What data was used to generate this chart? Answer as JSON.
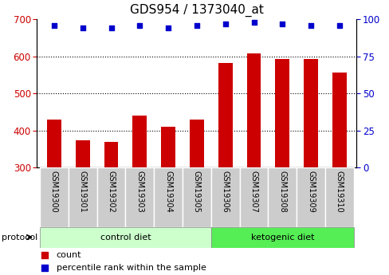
{
  "title": "GDS954 / 1373040_at",
  "samples": [
    "GSM19300",
    "GSM19301",
    "GSM19302",
    "GSM19303",
    "GSM19304",
    "GSM19305",
    "GSM19306",
    "GSM19307",
    "GSM19308",
    "GSM19309",
    "GSM19310"
  ],
  "counts": [
    430,
    375,
    370,
    441,
    410,
    430,
    582,
    607,
    592,
    592,
    557
  ],
  "percentile_ranks": [
    96,
    94,
    94,
    96,
    94,
    96,
    97,
    98,
    97,
    96,
    96
  ],
  "bar_color": "#cc0000",
  "dot_color": "#0000cc",
  "ylim_left": [
    300,
    700
  ],
  "ylim_right": [
    0,
    100
  ],
  "yticks_left": [
    300,
    400,
    500,
    600,
    700
  ],
  "yticks_right": [
    0,
    25,
    50,
    75,
    100
  ],
  "grid_values": [
    400,
    500,
    600
  ],
  "n_control": 6,
  "n_keto": 5,
  "control_label": "control diet",
  "ketogenic_label": "ketogenic diet",
  "protocol_label": "protocol",
  "legend_count": "count",
  "legend_percentile": "percentile rank within the sample",
  "control_bg": "#ccffcc",
  "ketogenic_bg": "#55ee55",
  "title_fontsize": 11,
  "bar_width": 0.5
}
